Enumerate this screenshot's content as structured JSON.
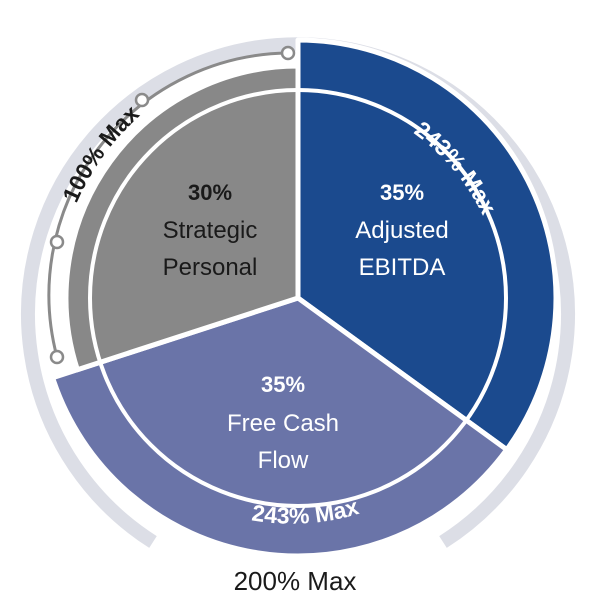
{
  "chart_data": {
    "type": "pie",
    "title": "",
    "slices": [
      {
        "percent": "35%",
        "label_lines": [
          "Adjusted",
          "EBITDA"
        ],
        "value": 35,
        "max": "243% Max",
        "color": "#1b4a8e",
        "text_color": "#ffffff"
      },
      {
        "percent": "35%",
        "label_lines": [
          "Free Cash",
          "Flow"
        ],
        "value": 35,
        "max": "243% Max",
        "color": "#6a74a8",
        "text_color": "#ffffff"
      },
      {
        "percent": "30%",
        "label_lines": [
          "Strategic",
          "Personal"
        ],
        "value": 30,
        "max": "100% Max",
        "color": "#888888",
        "text_color": "#1a1a1a"
      }
    ],
    "total_max": "200% Max",
    "colors": {
      "outer_ring": "#dcdee6",
      "bracket_line": "#8a8a8a"
    }
  }
}
